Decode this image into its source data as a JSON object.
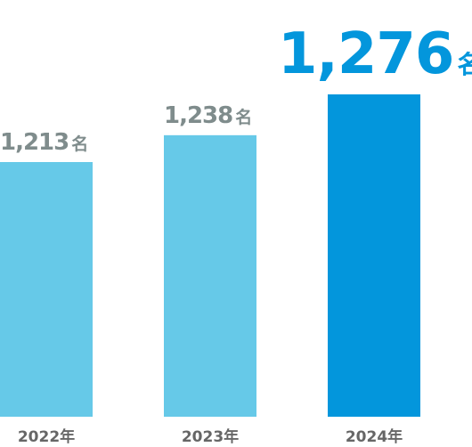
{
  "chart_data": {
    "type": "bar",
    "categories": [
      "2022年",
      "2023年",
      "2024年"
    ],
    "values": [
      1213,
      1238,
      1276
    ],
    "value_labels": [
      "1,213",
      "1,238",
      "1,276"
    ],
    "unit": "名",
    "title": "",
    "xlabel": "",
    "ylabel": "",
    "grid": false,
    "legend": "none",
    "colors": {
      "bar_default": "#66c9e8",
      "bar_highlight": "#0396dc",
      "label_default": "#7f8c8c",
      "label_highlight": "#0396dc",
      "axis_text": "#666666"
    },
    "highlight_index": 2
  }
}
